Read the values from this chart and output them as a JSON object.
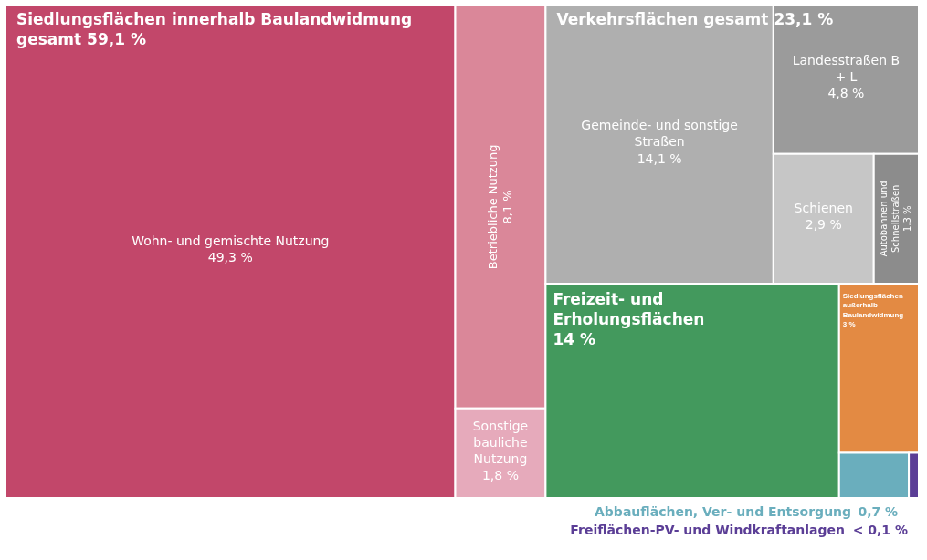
{
  "chart_data": {
    "type": "other",
    "categories": [
      "Wohn- und gemischte Nutzung",
      "Betriebliche Nutzung",
      "Sonstige bauliche Nutzung",
      "Gemeinde- und sonstige Straßen",
      "Landesstraßen B + L",
      "Schienen",
      "Autobahnen und Schnellstraßen",
      "Freizeit- und Erholungsflächen",
      "Siedlungsflächen außerhalb Baulandwidmung",
      "Abbauflächen, Ver- und Entsorgung",
      "Freiflächen-PV- und Windkraftanlagen"
    ],
    "series": [
      {
        "name": "Siedlungsflächen innerhalb Baulandwidmung gesamt 59,1 %",
        "values": [
          49.3,
          8.1,
          1.8,
          null,
          null,
          null,
          null,
          null,
          null,
          null,
          null
        ],
        "value_labels": [
          "49,3 %",
          "8,1 %",
          "1,8 %",
          null,
          null,
          null,
          null,
          null,
          null,
          null,
          null
        ],
        "colors": [
          "#c2476a",
          "#da8799",
          "#e6aabb",
          null,
          null,
          null,
          null,
          null,
          null,
          null,
          null
        ]
      },
      {
        "name": "Verkehrsflächen gesamt 23,1 %",
        "values": [
          null,
          null,
          null,
          14.1,
          4.8,
          2.9,
          1.3,
          null,
          null,
          null,
          null
        ],
        "value_labels": [
          null,
          null,
          null,
          "14,1 %",
          "4,8 %",
          "2,9 %",
          "1,3 %",
          null,
          null,
          null,
          null
        ],
        "colors": [
          null,
          null,
          null,
          "#afafaf",
          "#9b9b9b",
          "#c6c6c6",
          "#8c8c8c",
          null,
          null,
          null,
          null
        ]
      },
      {
        "values": [
          null,
          null,
          null,
          null,
          null,
          null,
          null,
          14,
          null,
          null,
          null
        ],
        "value_labels": [
          null,
          null,
          null,
          null,
          null,
          null,
          null,
          "14 %",
          null,
          null,
          null
        ],
        "colors": [
          null,
          null,
          null,
          null,
          null,
          null,
          null,
          "#43995d",
          null,
          null,
          null
        ]
      },
      {
        "values": [
          null,
          null,
          null,
          null,
          null,
          null,
          null,
          null,
          3,
          null,
          null
        ],
        "value_labels": [
          null,
          null,
          null,
          null,
          null,
          null,
          null,
          null,
          "3 %",
          null,
          null
        ],
        "colors": [
          null,
          null,
          null,
          null,
          null,
          null,
          null,
          null,
          "#e38a43",
          null,
          null
        ]
      },
      {
        "values": [
          null,
          null,
          null,
          null,
          null,
          null,
          null,
          null,
          null,
          0.7,
          null
        ],
        "value_labels": [
          null,
          null,
          null,
          null,
          null,
          null,
          null,
          null,
          null,
          "0,7 %",
          null
        ],
        "colors": [
          null,
          null,
          null,
          null,
          null,
          null,
          null,
          null,
          null,
          "#6aaebd",
          null
        ]
      },
      {
        "values": [
          null,
          null,
          null,
          null,
          null,
          null,
          null,
          null,
          null,
          null,
          0.1
        ],
        "value_labels": [
          null,
          null,
          null,
          null,
          null,
          null,
          null,
          null,
          null,
          null,
          "< 0,1 %"
        ],
        "colors": [
          null,
          null,
          null,
          null,
          null,
          null,
          null,
          null,
          null,
          null,
          "#5b3e96"
        ]
      }
    ]
  }
}
